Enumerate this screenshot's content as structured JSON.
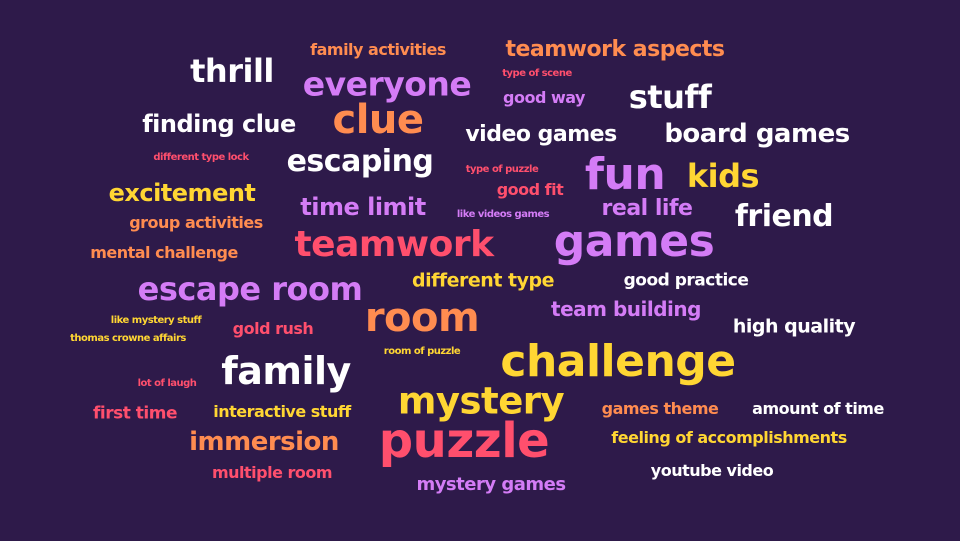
{
  "colors": {
    "background": "#2e1a4a",
    "white": "#ffffff",
    "orange": "#ff8c50",
    "violet": "#d47cf6",
    "yellow": "#ffd633",
    "coral": "#ff4f6d"
  },
  "words": [
    {
      "text": "family activities",
      "color": "orange"
    },
    {
      "text": "teamwork aspects",
      "color": "orange"
    },
    {
      "text": "thrill",
      "color": "white"
    },
    {
      "text": "everyone",
      "color": "violet"
    },
    {
      "text": "type of scene",
      "color": "coral"
    },
    {
      "text": "good way",
      "color": "violet"
    },
    {
      "text": "stuff",
      "color": "white"
    },
    {
      "text": "clue",
      "color": "orange"
    },
    {
      "text": "finding clue",
      "color": "white"
    },
    {
      "text": "video games",
      "color": "white"
    },
    {
      "text": "board games",
      "color": "white"
    },
    {
      "text": "different type lock",
      "color": "coral"
    },
    {
      "text": "escaping",
      "color": "white"
    },
    {
      "text": "type of puzzle",
      "color": "coral"
    },
    {
      "text": "fun",
      "color": "violet"
    },
    {
      "text": "kids",
      "color": "yellow"
    },
    {
      "text": "excitement",
      "color": "yellow"
    },
    {
      "text": "good fit",
      "color": "coral"
    },
    {
      "text": "time limit",
      "color": "violet"
    },
    {
      "text": "like videos games",
      "color": "violet"
    },
    {
      "text": "real life",
      "color": "violet"
    },
    {
      "text": "friend",
      "color": "white"
    },
    {
      "text": "group activities",
      "color": "orange"
    },
    {
      "text": "teamwork",
      "color": "coral"
    },
    {
      "text": "games",
      "color": "violet"
    },
    {
      "text": "mental challenge",
      "color": "orange"
    },
    {
      "text": "different type",
      "color": "yellow"
    },
    {
      "text": "good practice",
      "color": "white"
    },
    {
      "text": "escape room",
      "color": "violet"
    },
    {
      "text": "team building",
      "color": "violet"
    },
    {
      "text": "room",
      "color": "orange"
    },
    {
      "text": "like mystery stuff",
      "color": "yellow"
    },
    {
      "text": "gold rush",
      "color": "coral"
    },
    {
      "text": "high quality",
      "color": "white"
    },
    {
      "text": "thomas crowne affairs",
      "color": "yellow"
    },
    {
      "text": "room of puzzle",
      "color": "yellow"
    },
    {
      "text": "challenge",
      "color": "yellow"
    },
    {
      "text": "family",
      "color": "white"
    },
    {
      "text": "lot of laugh",
      "color": "coral"
    },
    {
      "text": "mystery",
      "color": "yellow"
    },
    {
      "text": "first time",
      "color": "coral"
    },
    {
      "text": "interactive stuff",
      "color": "yellow"
    },
    {
      "text": "games theme",
      "color": "orange"
    },
    {
      "text": "amount of time",
      "color": "white"
    },
    {
      "text": "immersion",
      "color": "orange"
    },
    {
      "text": "puzzle",
      "color": "coral"
    },
    {
      "text": "feeling of accomplishments",
      "color": "yellow"
    },
    {
      "text": "multiple room",
      "color": "coral"
    },
    {
      "text": "youtube video",
      "color": "white"
    },
    {
      "text": "mystery games",
      "color": "violet"
    }
  ]
}
